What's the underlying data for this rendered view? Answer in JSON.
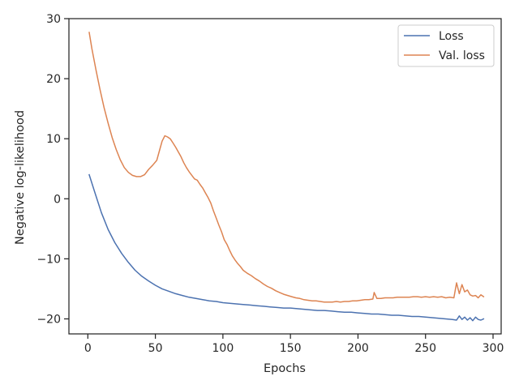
{
  "chart_data": {
    "type": "line",
    "title": "",
    "xlabel": "Epochs",
    "ylabel": "Negative log-likelihood",
    "xlim": [
      -14,
      306
    ],
    "ylim": [
      -22.5,
      30
    ],
    "xticks": [
      0,
      50,
      100,
      150,
      200,
      250,
      300
    ],
    "yticks": [
      -20,
      -10,
      0,
      10,
      20,
      30
    ],
    "xtick_labels": [
      "0",
      "50",
      "100",
      "150",
      "200",
      "250",
      "300"
    ],
    "ytick_labels": [
      "−20",
      "−10",
      "0",
      "10",
      "20",
      "30"
    ],
    "grid": false,
    "legend": {
      "position": "top-right",
      "entries": [
        "Loss",
        "Val. loss"
      ]
    },
    "series": [
      {
        "name": "Loss",
        "color": "#4c72b0",
        "x": [
          1,
          5,
          10,
          15,
          20,
          25,
          30,
          35,
          40,
          45,
          50,
          55,
          60,
          65,
          70,
          75,
          80,
          85,
          90,
          95,
          100,
          105,
          110,
          115,
          120,
          125,
          130,
          135,
          140,
          145,
          150,
          155,
          160,
          165,
          170,
          175,
          180,
          185,
          190,
          195,
          200,
          205,
          210,
          215,
          220,
          225,
          230,
          235,
          240,
          245,
          250,
          255,
          260,
          265,
          270,
          273,
          275,
          277,
          279,
          281,
          283,
          285,
          287,
          289,
          291,
          293
        ],
        "y": [
          4.0,
          1.2,
          -2.3,
          -5.1,
          -7.3,
          -9.1,
          -10.6,
          -11.9,
          -12.9,
          -13.7,
          -14.4,
          -15.0,
          -15.4,
          -15.8,
          -16.1,
          -16.4,
          -16.6,
          -16.8,
          -17.0,
          -17.1,
          -17.3,
          -17.4,
          -17.5,
          -17.6,
          -17.7,
          -17.8,
          -17.9,
          -18.0,
          -18.1,
          -18.2,
          -18.2,
          -18.3,
          -18.4,
          -18.5,
          -18.6,
          -18.6,
          -18.7,
          -18.8,
          -18.9,
          -18.9,
          -19.0,
          -19.1,
          -19.2,
          -19.2,
          -19.3,
          -19.4,
          -19.4,
          -19.5,
          -19.6,
          -19.6,
          -19.7,
          -19.8,
          -19.9,
          -20.0,
          -20.1,
          -20.2,
          -19.5,
          -20.1,
          -19.7,
          -20.2,
          -19.8,
          -20.3,
          -19.7,
          -20.1,
          -20.2,
          -20.0
        ]
      },
      {
        "name": "Val. loss",
        "color": "#dd8452",
        "x": [
          1,
          3,
          6,
          9,
          12,
          15,
          18,
          21,
          24,
          27,
          30,
          33,
          36,
          39,
          42,
          45,
          48,
          51,
          53,
          55,
          57,
          59,
          61,
          63,
          65,
          67,
          69,
          71,
          73,
          75,
          77,
          79,
          81,
          83,
          85,
          87,
          89,
          91,
          93,
          95,
          97,
          99,
          101,
          103,
          105,
          107,
          109,
          111,
          113,
          115,
          118,
          121,
          124,
          127,
          130,
          133,
          136,
          139,
          142,
          145,
          148,
          151,
          154,
          157,
          160,
          163,
          166,
          169,
          172,
          175,
          178,
          181,
          184,
          187,
          190,
          193,
          196,
          199,
          202,
          205,
          208,
          211,
          212,
          214,
          217,
          220,
          223,
          226,
          229,
          232,
          235,
          238,
          241,
          244,
          247,
          250,
          253,
          256,
          259,
          262,
          265,
          268,
          271,
          273,
          275,
          277,
          279,
          281,
          283,
          285,
          287,
          289,
          291,
          293
        ],
        "y": [
          27.7,
          25.0,
          21.5,
          18.2,
          15.2,
          12.6,
          10.2,
          8.2,
          6.5,
          5.2,
          4.4,
          3.9,
          3.7,
          3.7,
          4.0,
          4.9,
          5.6,
          6.4,
          8.0,
          9.6,
          10.5,
          10.3,
          10.0,
          9.3,
          8.6,
          7.8,
          7.0,
          6.0,
          5.2,
          4.5,
          3.9,
          3.3,
          3.1,
          2.4,
          1.8,
          1.0,
          0.2,
          -0.7,
          -2.0,
          -3.2,
          -4.4,
          -5.5,
          -6.8,
          -7.6,
          -8.6,
          -9.5,
          -10.2,
          -10.8,
          -11.3,
          -11.9,
          -12.4,
          -12.8,
          -13.3,
          -13.7,
          -14.2,
          -14.6,
          -14.9,
          -15.3,
          -15.6,
          -15.9,
          -16.1,
          -16.3,
          -16.5,
          -16.6,
          -16.8,
          -16.9,
          -17.0,
          -17.0,
          -17.1,
          -17.2,
          -17.2,
          -17.2,
          -17.1,
          -17.2,
          -17.1,
          -17.1,
          -17.0,
          -17.0,
          -16.9,
          -16.8,
          -16.8,
          -16.7,
          -15.6,
          -16.6,
          -16.6,
          -16.5,
          -16.5,
          -16.5,
          -16.4,
          -16.4,
          -16.4,
          -16.4,
          -16.3,
          -16.3,
          -16.4,
          -16.3,
          -16.4,
          -16.3,
          -16.4,
          -16.3,
          -16.5,
          -16.4,
          -16.5,
          -14.0,
          -15.8,
          -14.3,
          -15.5,
          -15.2,
          -16.0,
          -16.2,
          -16.1,
          -16.5,
          -16.0,
          -16.3
        ]
      }
    ]
  }
}
